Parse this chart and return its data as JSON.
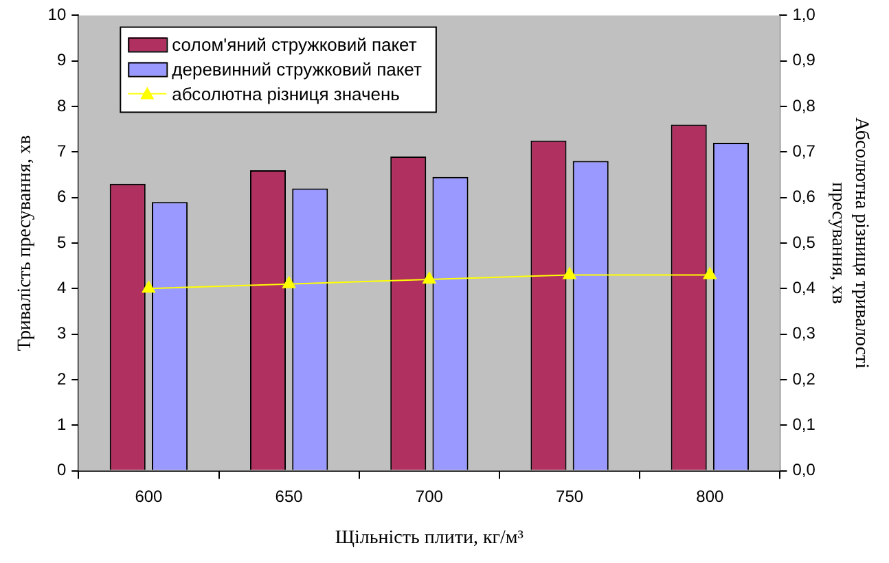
{
  "chart_data": {
    "type": "bar",
    "xlabel": "Щільність плити, кг/м³",
    "ylabel": "Тривалість пресування, хв",
    "y2label": "Абсолютна різниця тривалості\nпресування, хв",
    "categories": [
      "600",
      "650",
      "700",
      "750",
      "800"
    ],
    "series": [
      {
        "name": "солом'яний стружковий пакет",
        "color": "#b03060",
        "values": [
          6.3,
          6.6,
          6.9,
          7.25,
          7.6
        ]
      },
      {
        "name": "деревинний стружковий пакет",
        "color": "#9999ff",
        "values": [
          5.9,
          6.2,
          6.45,
          6.8,
          7.2
        ]
      },
      {
        "name": "абсолютна різниця значень",
        "type": "line",
        "axis": "y2",
        "color": "#ffff00",
        "marker": "triangle",
        "values": [
          0.4,
          0.41,
          0.42,
          0.43,
          0.43
        ]
      }
    ],
    "ylim": [
      0,
      10
    ],
    "yticks": [
      0,
      1,
      2,
      3,
      4,
      5,
      6,
      7,
      8,
      9,
      10
    ],
    "y2lim": [
      0,
      1
    ],
    "y2ticks": [
      {
        "value": 0,
        "label": "0,0"
      },
      {
        "value": 0.1,
        "label": "0,1"
      },
      {
        "value": 0.2,
        "label": "0,2"
      },
      {
        "value": 0.3,
        "label": "0,3"
      },
      {
        "value": 0.4,
        "label": "0,4"
      },
      {
        "value": 0.5,
        "label": "0,5"
      },
      {
        "value": 0.6,
        "label": "0,6"
      },
      {
        "value": 0.7,
        "label": "0,7"
      },
      {
        "value": 0.8,
        "label": "0,8"
      },
      {
        "value": 0.9,
        "label": "0,9"
      },
      {
        "value": 1,
        "label": "1,0"
      }
    ],
    "grid": false,
    "legend": "top left"
  }
}
